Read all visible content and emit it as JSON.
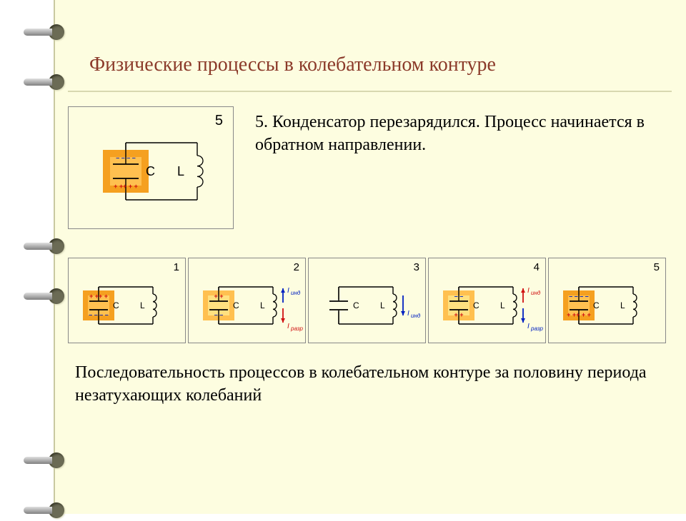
{
  "title": "Физические процессы в колебательном контуре",
  "main_panel": {
    "number": "5",
    "cap_label": "C",
    "ind_label": "L",
    "top_charge": "– – – –",
    "bottom_charge": "+ ++ + +",
    "box_outer": "#f5a020",
    "box_inner": "#ffc050",
    "top_color": "#0020c0",
    "bottom_color": "#d01010"
  },
  "description": "5. Конденсатор перезарядился. Процесс начинается в обратном направлении.",
  "sequence": [
    {
      "n": "1",
      "top_charge": "+ ++ +",
      "bottom_charge": "– – – –",
      "top_color": "#d01010",
      "bottom_color": "#0020c0",
      "box_outer": "#f5a020",
      "box_inner": "#ffc050",
      "arrows": null
    },
    {
      "n": "2",
      "top_charge": "+ +",
      "bottom_charge": "– –",
      "top_color": "#d01010",
      "bottom_color": "#0020c0",
      "box_outer": "#ffc050",
      "box_inner": "#ffe080",
      "arrows": {
        "ind": {
          "color": "#0020c0",
          "dir": "up",
          "label": "инд"
        },
        "razr": {
          "color": "#d01010",
          "dir": "down",
          "label": "разр"
        }
      }
    },
    {
      "n": "3",
      "top_charge": null,
      "bottom_charge": null,
      "arrows": {
        "ind": {
          "color": "#0020c0",
          "dir": "down",
          "label": "инд",
          "solo": true
        }
      }
    },
    {
      "n": "4",
      "top_charge": "– –",
      "bottom_charge": "+ +",
      "top_color": "#0020c0",
      "bottom_color": "#d01010",
      "box_outer": "#ffc050",
      "box_inner": "#ffe080",
      "arrows": {
        "ind": {
          "color": "#d01010",
          "dir": "up",
          "label": "инд"
        },
        "razr": {
          "color": "#0020c0",
          "dir": "down",
          "label": "разр"
        }
      }
    },
    {
      "n": "5",
      "top_charge": "– – – –",
      "bottom_charge": "+ ++ + +",
      "top_color": "#0020c0",
      "bottom_color": "#d01010",
      "box_outer": "#f5a020",
      "box_inner": "#ffc050",
      "arrows": null
    }
  ],
  "caption": "Последовательность процессов в колебательном контуре за половину периода незатухающих колебаний",
  "labels": {
    "C": "C",
    "L": "L",
    "I": "I"
  },
  "ring_positions": [
    30,
    100,
    330,
    400,
    630,
    700
  ]
}
